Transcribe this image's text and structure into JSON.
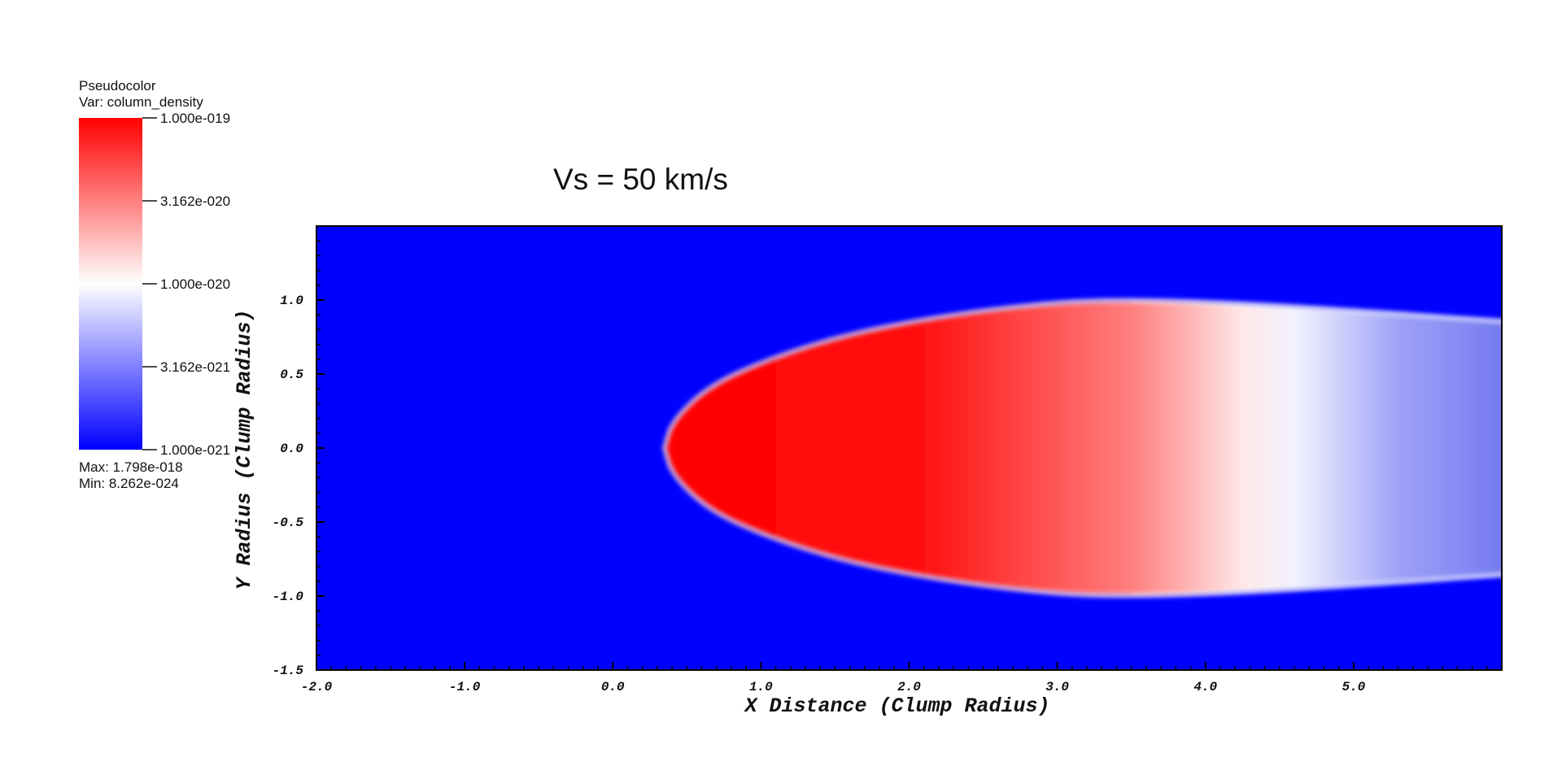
{
  "chart_data": {
    "type": "heatmap",
    "title": "Vs = 50 km/s",
    "xlabel": "X Distance (Clump Radius)",
    "ylabel": "Y Radius (Clump Radius)",
    "xlim": [
      -2.0,
      6.0
    ],
    "ylim": [
      -1.5,
      1.5
    ],
    "x_ticks": [
      "-2.0",
      "-1.0",
      "0.0",
      "1.0",
      "2.0",
      "3.0",
      "4.0",
      "5.0"
    ],
    "y_ticks": [
      "-1.5",
      "-1.0",
      "-0.5",
      "0.0",
      "0.5",
      "1.0"
    ],
    "legend": {
      "plot_type": "Pseudocolor",
      "variable": "Var: column_density",
      "ticks": [
        "1.000e-019",
        "3.162e-020",
        "1.000e-020",
        "3.162e-021",
        "1.000e-021"
      ],
      "max": "Max:  1.798e-018",
      "min": "Min:  8.262e-024",
      "scale": "log",
      "range": [
        1e-21,
        1e-19
      ],
      "colors": {
        "low": "#0000ff",
        "mid": "#ffffff",
        "high": "#ff0000"
      }
    },
    "plume": {
      "nose_x": 0.35,
      "bow_half_width": 1.0,
      "red_core_end_x": 4.1,
      "white_transition_x": 3.5,
      "tail_end_x": 6.0,
      "tail_half_width": 0.85
    }
  }
}
